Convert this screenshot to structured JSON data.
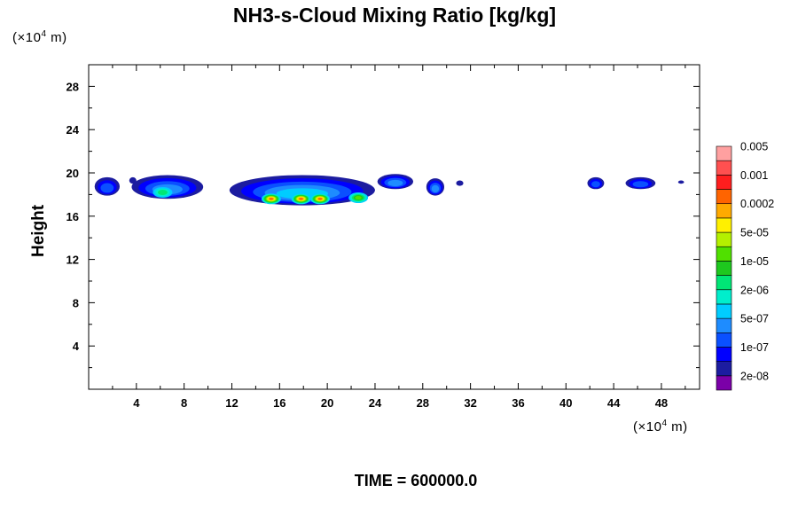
{
  "chart_data": {
    "type": "heatmap",
    "title": "NH3-s-Cloud Mixing Ratio [kg/kg]",
    "ylabel": "Height",
    "xunit": {
      "prefix": "(×10",
      "exp": "4",
      "suffix": "  m)"
    },
    "yunit": {
      "prefix": "(×10",
      "exp": "4",
      "suffix": "  m)"
    },
    "footer": "TIME = 600000.0",
    "xlim": [
      0,
      51.2
    ],
    "ylim": [
      0,
      30
    ],
    "xticks": [
      4,
      8,
      12,
      16,
      20,
      24,
      28,
      32,
      36,
      40,
      44,
      48
    ],
    "yticks": [
      4,
      8,
      12,
      16,
      20,
      24,
      28
    ],
    "colorbar": {
      "colors": [
        "#7b00a8",
        "#1c1ca0",
        "#0000ff",
        "#0a50ff",
        "#1e8cff",
        "#00ccff",
        "#00eecc",
        "#00e676",
        "#1ec81e",
        "#50e000",
        "#b4f000",
        "#fff000",
        "#ffaa00",
        "#ff6400",
        "#ff1e1e",
        "#ff5050",
        "#ffa0a0"
      ],
      "labels": [
        "2e-08",
        "1e-07",
        "5e-07",
        "2e-06",
        "1e-05",
        "5e-05",
        "0.0002",
        "0.001",
        "0.005"
      ]
    },
    "regions": [
      {
        "x0": 0.5,
        "x1": 2.6,
        "y0": 17.9,
        "y1": 19.6,
        "level": 3
      },
      {
        "x0": 3.4,
        "x1": 4.0,
        "y0": 19.0,
        "y1": 19.6,
        "level": 1
      },
      {
        "x0": 3.6,
        "x1": 9.6,
        "y0": 17.6,
        "y1": 19.8,
        "level": 4
      },
      {
        "x0": 11.8,
        "x1": 24.0,
        "y0": 17.0,
        "y1": 19.8,
        "level": 5
      },
      {
        "x0": 24.2,
        "x1": 27.2,
        "y0": 18.5,
        "y1": 19.9,
        "level": 4
      },
      {
        "x0": 28.3,
        "x1": 29.8,
        "y0": 17.9,
        "y1": 19.5,
        "level": 4
      },
      {
        "x0": 30.8,
        "x1": 31.4,
        "y0": 18.8,
        "y1": 19.3,
        "level": 1
      },
      {
        "x0": 41.8,
        "x1": 43.2,
        "y0": 18.5,
        "y1": 19.6,
        "level": 3
      },
      {
        "x0": 45.0,
        "x1": 47.5,
        "y0": 18.5,
        "y1": 19.6,
        "level": 3
      },
      {
        "x0": 49.4,
        "x1": 49.9,
        "y0": 19.0,
        "y1": 19.3,
        "level": 1
      }
    ],
    "peaks": [
      {
        "x": 15.3,
        "y": 17.6,
        "level": 13
      },
      {
        "x": 17.8,
        "y": 17.6,
        "level": 13
      },
      {
        "x": 19.4,
        "y": 17.6,
        "level": 13
      },
      {
        "x": 22.6,
        "y": 17.7,
        "level": 9
      },
      {
        "x": 6.2,
        "y": 18.2,
        "level": 7
      }
    ]
  }
}
